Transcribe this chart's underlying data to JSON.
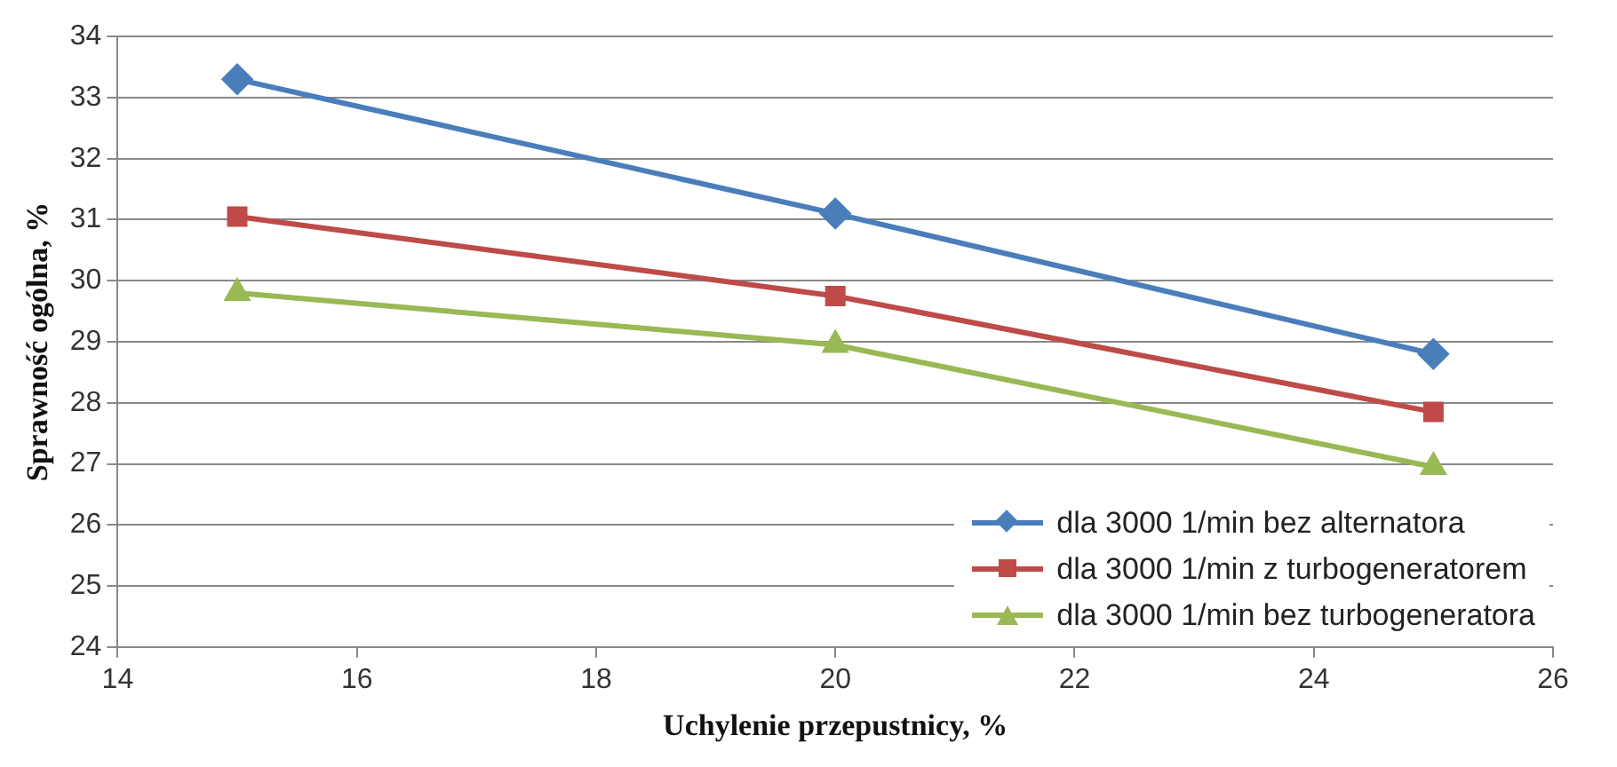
{
  "chart_data": {
    "type": "line",
    "xlabel": "Uchylenie przepustnicy, %",
    "ylabel": "Sprawność ogólna, %",
    "x": [
      15,
      20,
      25
    ],
    "series": [
      {
        "name": "dla 3000 1/min bez alternatora",
        "color": "#4a7ebb",
        "marker": "diamond",
        "values": [
          33.3,
          31.1,
          28.8
        ]
      },
      {
        "name": "dla 3000 1/min z turbogeneratorem",
        "color": "#be4b48",
        "marker": "square",
        "values": [
          31.05,
          29.75,
          27.85
        ]
      },
      {
        "name": "dla 3000 1/min bez turbogeneratora",
        "color": "#98b954",
        "marker": "triangle",
        "values": [
          29.8,
          28.95,
          26.95
        ]
      }
    ],
    "xlim": [
      14,
      26
    ],
    "xticks": [
      14,
      16,
      18,
      20,
      22,
      24,
      26
    ],
    "ylim": [
      24,
      34
    ],
    "yticks": [
      24,
      25,
      26,
      27,
      28,
      29,
      30,
      31,
      32,
      33,
      34
    ],
    "grid": "y",
    "legend": "bottom right",
    "line_style": "solid"
  }
}
